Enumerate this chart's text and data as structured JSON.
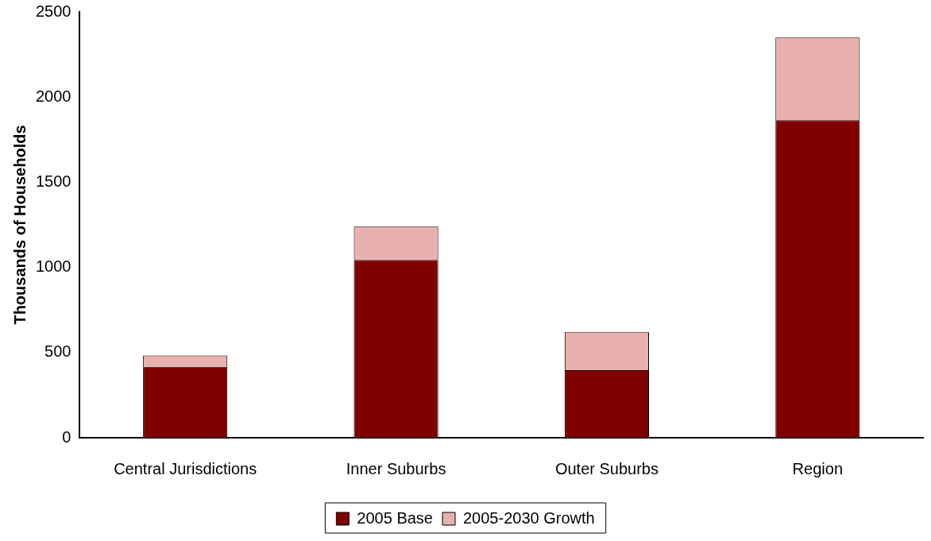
{
  "chart_data": {
    "type": "bar",
    "stacked": true,
    "ylabel": "Thousands of Households",
    "categories": [
      "Central Jurisdictions",
      "Inner Suburbs",
      "Outer Suburbs",
      "Region"
    ],
    "series": [
      {
        "name": "2005 Base",
        "color": "#800000",
        "values": [
          416,
          1044,
          396,
          1865
        ]
      },
      {
        "name": "2005-2030 Growth",
        "color": "#e9b0b0",
        "values": [
          67,
          196,
          223,
          484
        ]
      }
    ],
    "ylim": [
      0,
      2500
    ],
    "yticks": [
      0,
      500,
      1000,
      1500,
      2000,
      2500
    ],
    "grid": false,
    "legend": "bottom"
  }
}
